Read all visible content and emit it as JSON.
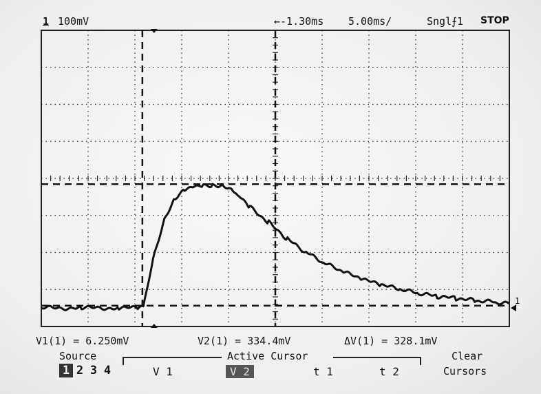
{
  "status": {
    "channel": "1",
    "volts_per_div": "100mV",
    "time_offset": "←-1.30ms",
    "time_per_div": "5.00ms/",
    "trigger": "Sngl",
    "trigger_channel": "1",
    "run_state": "STOP"
  },
  "measurements": {
    "v1": "V1(1) = 6.250mV",
    "v2": "V2(1) = 334.4mV",
    "delta_v": "ΔV(1) = 328.1mV"
  },
  "softkeys": {
    "source_label": "Source",
    "sources": [
      "1",
      "2",
      "3",
      "4"
    ],
    "selected_source": "1",
    "active_cursor_label": "Active Cursor",
    "options": [
      "V 1",
      "V 2",
      "t 1",
      "t 2"
    ],
    "selected_option": "V 2",
    "clear_line1": "Clear",
    "clear_line2": "Cursors"
  },
  "ground_marker": "1",
  "colors": {
    "trace": "#111111",
    "background": "#f2f2f2",
    "graticule": "#222222"
  },
  "chart_data": {
    "type": "line",
    "xlabel": "",
    "ylabel": "",
    "x_unit": "ms",
    "y_unit": "mV",
    "xlim": [
      -26.3,
      23.7
    ],
    "ylim": [
      -50,
      750
    ],
    "grid": true,
    "series": [
      {
        "x": [
          -26.3,
          -22,
          -18,
          -16,
          -15.4,
          -14.2,
          -13,
          -12,
          -11,
          -10,
          -9,
          -8,
          -7,
          -6,
          -5.5,
          -5,
          -4,
          -2,
          0,
          2,
          4,
          6,
          8,
          10,
          12,
          14,
          16,
          18,
          20,
          22,
          23.7
        ],
        "y": [
          0,
          0,
          0,
          0,
          5,
          150,
          250,
          298,
          322,
          330,
          333,
          332,
          332,
          322,
          310,
          296,
          272,
          231,
          186,
          150,
          120,
          97,
          77,
          62,
          50,
          39,
          31,
          26,
          20,
          16,
          12
        ]
      }
    ],
    "cursors": {
      "v1_mV": 6.25,
      "v2_mV": 334.4,
      "delta_mV": 328.1,
      "t_cursor_a_ms": -15.5,
      "t_cursor_b_ms": -1.3
    },
    "ground_level_mV": 0
  }
}
